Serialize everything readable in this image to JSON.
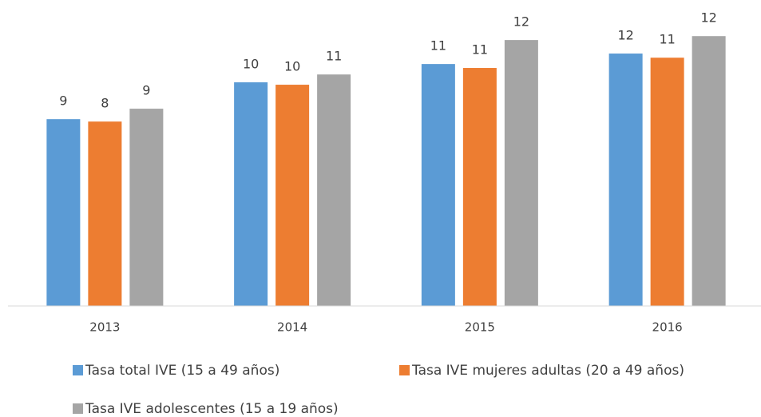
{
  "chart_data": {
    "type": "bar",
    "categories": [
      "2013",
      "2014",
      "2015",
      "2016"
    ],
    "series": [
      {
        "name": "Tasa total IVE (15 a 49 años)",
        "color": "#5b9bd5",
        "values": [
          8.57,
          10.26,
          11.1,
          11.58
        ],
        "value_labels": [
          "9",
          "10",
          "11",
          "12"
        ]
      },
      {
        "name": "Tasa IVE mujeres adultas (20 a 49 años)",
        "color": "#ed7d31",
        "values": [
          8.46,
          10.15,
          10.92,
          11.39
        ],
        "value_labels": [
          "8",
          "10",
          "11",
          "11"
        ]
      },
      {
        "name": "Tasa IVE adolescentes (15 a 19 años)",
        "color": "#a5a5a5",
        "values": [
          9.05,
          10.62,
          12.2,
          12.38
        ],
        "value_labels": [
          "9",
          "11",
          "12",
          "12"
        ]
      }
    ],
    "ylim": [
      0,
      14
    ],
    "legend": "bottom"
  }
}
